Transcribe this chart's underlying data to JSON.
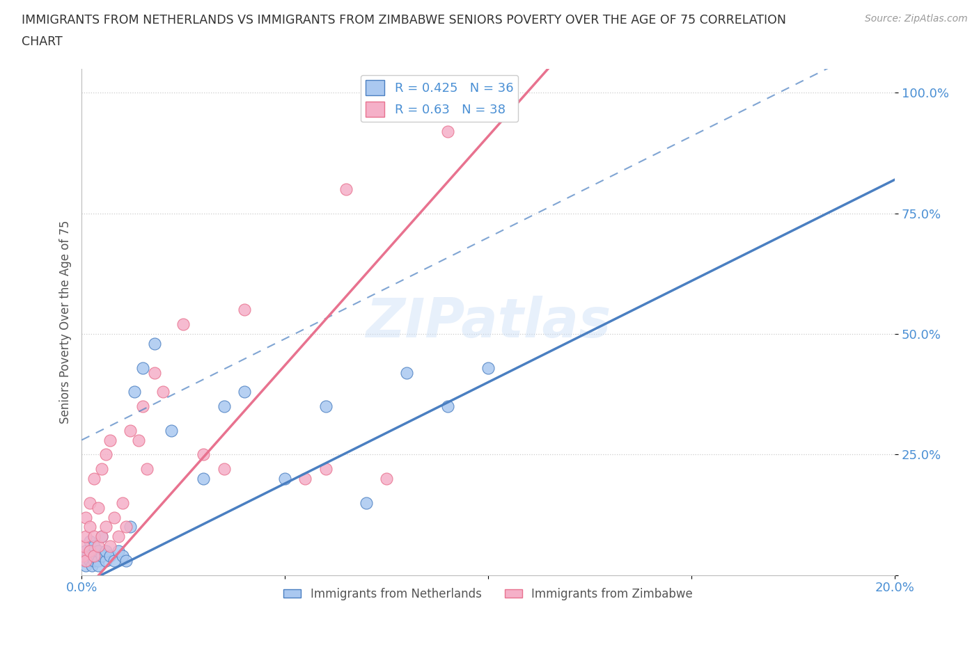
{
  "title_line1": "IMMIGRANTS FROM NETHERLANDS VS IMMIGRANTS FROM ZIMBABWE SENIORS POVERTY OVER THE AGE OF 75 CORRELATION",
  "title_line2": "CHART",
  "source": "Source: ZipAtlas.com",
  "ylabel": "Seniors Poverty Over the Age of 75",
  "xlim": [
    0.0,
    0.2
  ],
  "ylim": [
    0.0,
    1.05
  ],
  "color_netherlands": "#aac8f0",
  "color_zimbabwe": "#f5b0c8",
  "line_color_netherlands": "#4a7fc1",
  "line_color_zimbabwe": "#e8728f",
  "R_netherlands": 0.425,
  "N_netherlands": 36,
  "R_zimbabwe": 0.63,
  "N_zimbabwe": 38,
  "watermark": "ZIPatlas",
  "legend_label_netherlands": "Immigrants from Netherlands",
  "legend_label_zimbabwe": "Immigrants from Zimbabwe",
  "netherlands_x": [
    0.0005,
    0.001,
    0.001,
    0.0015,
    0.002,
    0.002,
    0.0025,
    0.003,
    0.003,
    0.003,
    0.004,
    0.004,
    0.004,
    0.005,
    0.005,
    0.006,
    0.006,
    0.007,
    0.008,
    0.009,
    0.01,
    0.011,
    0.012,
    0.013,
    0.015,
    0.018,
    0.022,
    0.03,
    0.035,
    0.04,
    0.05,
    0.06,
    0.07,
    0.08,
    0.09,
    0.1
  ],
  "netherlands_y": [
    0.03,
    0.05,
    0.02,
    0.04,
    0.03,
    0.07,
    0.02,
    0.04,
    0.03,
    0.06,
    0.03,
    0.05,
    0.02,
    0.04,
    0.08,
    0.03,
    0.05,
    0.04,
    0.03,
    0.05,
    0.04,
    0.03,
    0.1,
    0.38,
    0.43,
    0.48,
    0.3,
    0.2,
    0.35,
    0.38,
    0.2,
    0.35,
    0.15,
    0.42,
    0.35,
    0.43
  ],
  "zimbabwe_x": [
    0.0003,
    0.0005,
    0.001,
    0.001,
    0.001,
    0.002,
    0.002,
    0.002,
    0.003,
    0.003,
    0.003,
    0.004,
    0.004,
    0.005,
    0.005,
    0.006,
    0.006,
    0.007,
    0.007,
    0.008,
    0.009,
    0.01,
    0.011,
    0.012,
    0.014,
    0.015,
    0.016,
    0.018,
    0.02,
    0.025,
    0.03,
    0.035,
    0.04,
    0.055,
    0.06,
    0.065,
    0.075,
    0.09
  ],
  "zimbabwe_y": [
    0.04,
    0.06,
    0.08,
    0.12,
    0.03,
    0.05,
    0.1,
    0.15,
    0.04,
    0.08,
    0.2,
    0.06,
    0.14,
    0.22,
    0.08,
    0.1,
    0.25,
    0.06,
    0.28,
    0.12,
    0.08,
    0.15,
    0.1,
    0.3,
    0.28,
    0.35,
    0.22,
    0.42,
    0.38,
    0.52,
    0.25,
    0.22,
    0.55,
    0.2,
    0.22,
    0.8,
    0.2,
    0.92
  ],
  "background_color": "#ffffff",
  "grid_color": "#cccccc",
  "tick_label_color": "#4a8fd4",
  "title_color": "#333333",
  "nl_line_slope": 4.2,
  "nl_line_intercept": -0.02,
  "zw_line_slope": 9.5,
  "zw_line_intercept": -0.04
}
